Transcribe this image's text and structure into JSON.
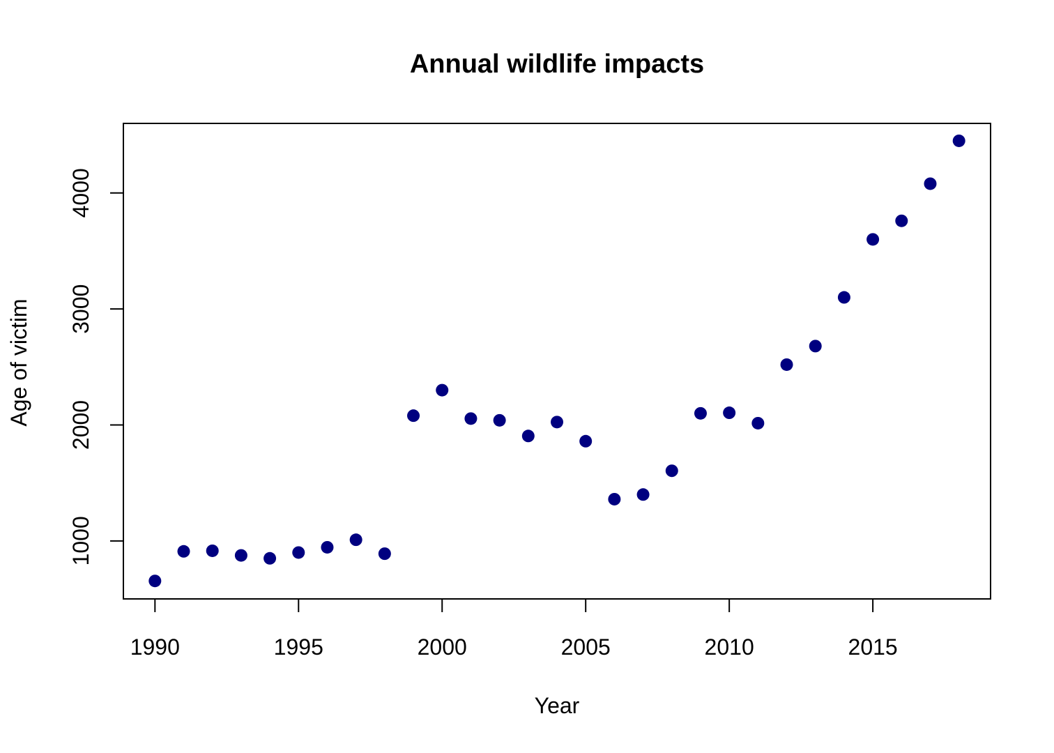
{
  "chart_data": {
    "type": "scatter",
    "title": "Annual wildlife impacts",
    "xlabel": "Year",
    "ylabel": "Age of victim",
    "x_ticks": [
      1990,
      1995,
      2000,
      2005,
      2010,
      2015
    ],
    "y_ticks": [
      1000,
      2000,
      3000,
      4000
    ],
    "xlim": [
      1988.9,
      2019.1
    ],
    "ylim": [
      500,
      4600
    ],
    "grid": false,
    "legend": "none",
    "point_color": "#000080",
    "x": [
      1990,
      1991,
      1992,
      1993,
      1994,
      1995,
      1996,
      1997,
      1998,
      1999,
      2000,
      2001,
      2002,
      2003,
      2004,
      2005,
      2006,
      2007,
      2008,
      2009,
      2010,
      2011,
      2012,
      2013,
      2014,
      2015,
      2016,
      2017,
      2018
    ],
    "y": [
      655,
      910,
      915,
      875,
      850,
      900,
      945,
      1010,
      890,
      2080,
      2300,
      2055,
      2040,
      1905,
      2025,
      1860,
      1360,
      1400,
      1605,
      2100,
      2105,
      2015,
      2520,
      2680,
      3100,
      3600,
      3760,
      4080,
      4450
    ]
  }
}
